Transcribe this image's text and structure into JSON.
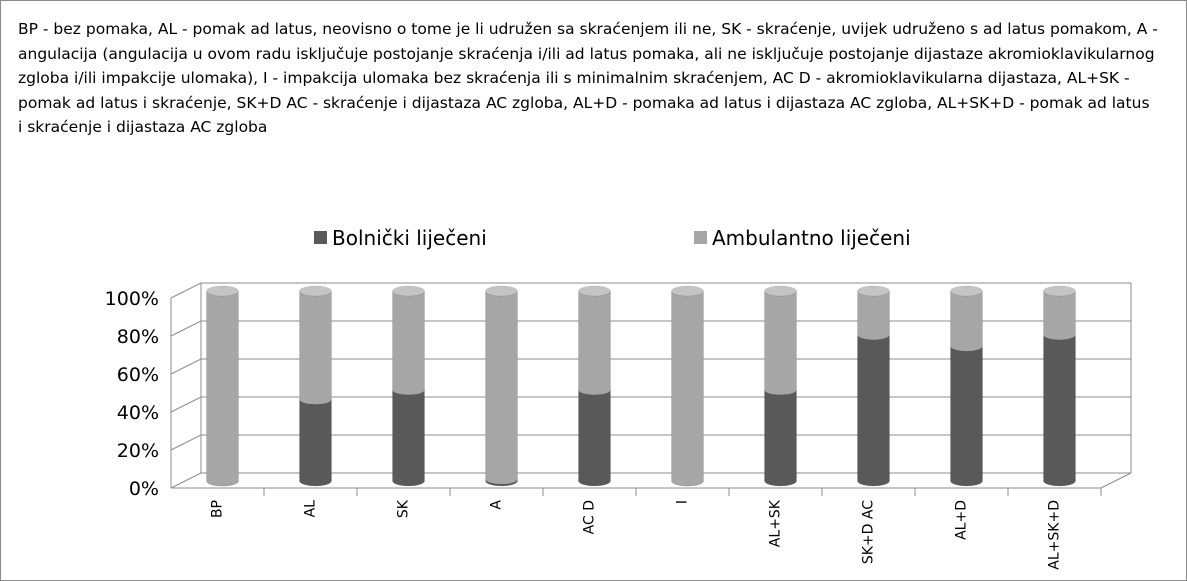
{
  "chart_data": {
    "type": "bar",
    "stacked": true,
    "title": "BP - bez pomaka, AL - pomak ad latus, neovisno o tome je li udružen sa skraćenjem ili ne, SK - skraćenje, uvijek udruženo s ad latus pomakom, A - angulacija (angulacija u ovom radu isključuje postojanje skraćenja i/ili ad latus pomaka, ali ne isključuje postojanje dijastaze akromioklavikularnog zgloba i/ili impakcije ulomaka), I - impakcija ulomaka bez skraćenja ili s minimalnim skraćenjem, AC D - akromioklavikularna dijastaza, AL+SK - pomak ad latus i skraćenje, SK+D AC - skraćenje i dijastaza AC zgloba, AL+D - pomaka ad latus i dijastaza AC zgloba, AL+SK+D - pomak ad latus i skraćenje i dijastaza AC zgloba",
    "categories": [
      "BP",
      "AL",
      "SK",
      "A",
      "AC D",
      "I",
      "AL+SK",
      "SK+D AC",
      "AL+D",
      "AL+SK+D"
    ],
    "series": [
      {
        "name": "Bolnički liječeni",
        "color": "#595959",
        "values": [
          0,
          43,
          48,
          1,
          48,
          0,
          48,
          77,
          71,
          77
        ]
      },
      {
        "name": "Ambulantno liječeni",
        "color": "#a6a6a6",
        "values": [
          100,
          57,
          52,
          99,
          52,
          100,
          52,
          23,
          29,
          23
        ]
      }
    ],
    "ylim": [
      0,
      100
    ],
    "yticks": [
      {
        "value": 0,
        "label": "0%"
      },
      {
        "value": 20,
        "label": "20%"
      },
      {
        "value": 40,
        "label": "40%"
      },
      {
        "value": 60,
        "label": "60%"
      },
      {
        "value": 80,
        "label": "80%"
      },
      {
        "value": 100,
        "label": "100%"
      }
    ],
    "grid": true,
    "legend": "top"
  }
}
